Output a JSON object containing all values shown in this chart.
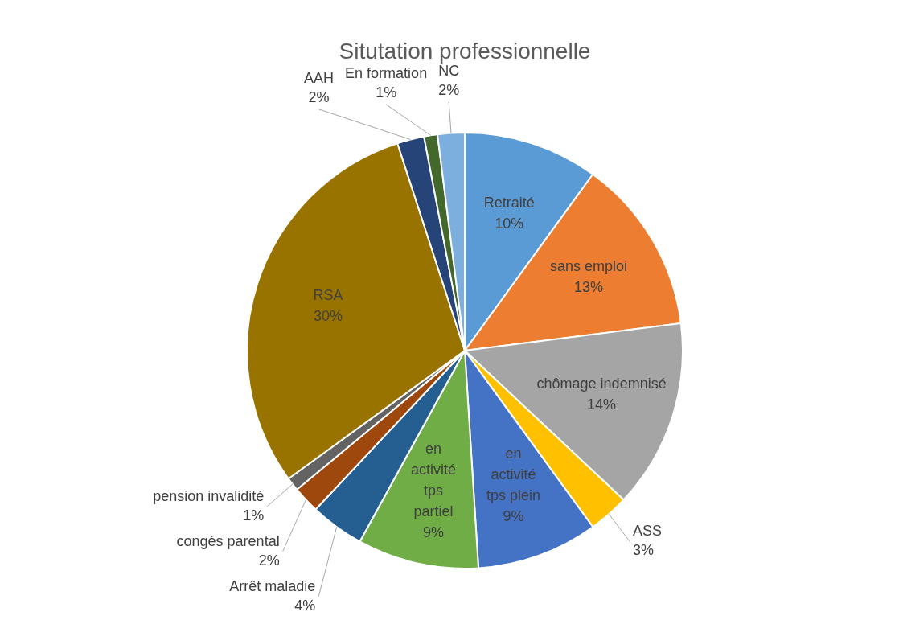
{
  "chart_data": {
    "type": "pie",
    "title": "Situtation professionnelle",
    "categories": [
      "Retraité",
      "sans emploi",
      "chômage indemnisé",
      "ASS",
      "en activité tps plein",
      "en activité tps partiel",
      "Arrêt maladie",
      "congés parental",
      "pension invalidité",
      "RSA",
      "AAH",
      "En formation",
      "NC"
    ],
    "values": [
      10,
      13,
      14,
      3,
      9,
      9,
      4,
      2,
      1,
      30,
      2,
      1,
      2
    ],
    "value_labels": [
      "10%",
      "13%",
      "14%",
      "3%",
      "9%",
      "9%",
      "4%",
      "2%",
      "1%",
      "30%",
      "2%",
      "1%",
      "2%"
    ],
    "colors": [
      "#5b9bd5",
      "#ed7d31",
      "#a5a5a5",
      "#ffc000",
      "#4472c4",
      "#70ad47",
      "#255e91",
      "#9e480e",
      "#636363",
      "#997300",
      "#264478",
      "#43682b",
      "#7cafdd"
    ],
    "legend": false
  }
}
